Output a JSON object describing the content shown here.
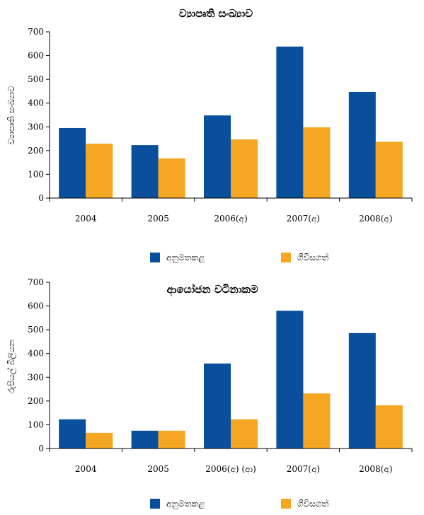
{
  "colors": {
    "approved": "#0a4f9c",
    "signed": "#f5a623",
    "axis": "#000000"
  },
  "chart_data": [
    {
      "type": "bar",
      "title": "ව්‍යාපෘති සංඛ්‍යාව",
      "ylabel": "ව්‍යාපෘති සංඛ්‍යාව",
      "xlabel": "",
      "ylim": [
        0,
        700
      ],
      "yticks": [
        0,
        100,
        200,
        300,
        400,
        500,
        600,
        700
      ],
      "categories": [
        "2004",
        "2005",
        "2006(අ)",
        "2007(අ)",
        "2008(අ)"
      ],
      "series": [
        {
          "name": "අනුමතකළ",
          "values": [
            295,
            223,
            348,
            638,
            447
          ]
        },
        {
          "name": "ගිවිසගත්",
          "values": [
            229,
            167,
            247,
            298,
            237
          ]
        }
      ],
      "legend": "bottom",
      "grid": false
    },
    {
      "type": "bar",
      "title": "ආයෝජන වටිනාකම",
      "ylabel": "රුපියල් බිලියන",
      "xlabel": "",
      "ylim": [
        0,
        700
      ],
      "yticks": [
        0,
        100,
        200,
        300,
        400,
        500,
        600,
        700
      ],
      "categories": [
        "2004",
        "2005",
        "2006(අ) (ආ)",
        "2007(අ)",
        "2008(අ)"
      ],
      "series": [
        {
          "name": "අනුමතකළ",
          "values": [
            123,
            75,
            358,
            580,
            486
          ]
        },
        {
          "name": "ගිවිසගත්",
          "values": [
            66,
            75,
            123,
            232,
            182
          ]
        }
      ],
      "legend": "bottom",
      "grid": false
    }
  ]
}
